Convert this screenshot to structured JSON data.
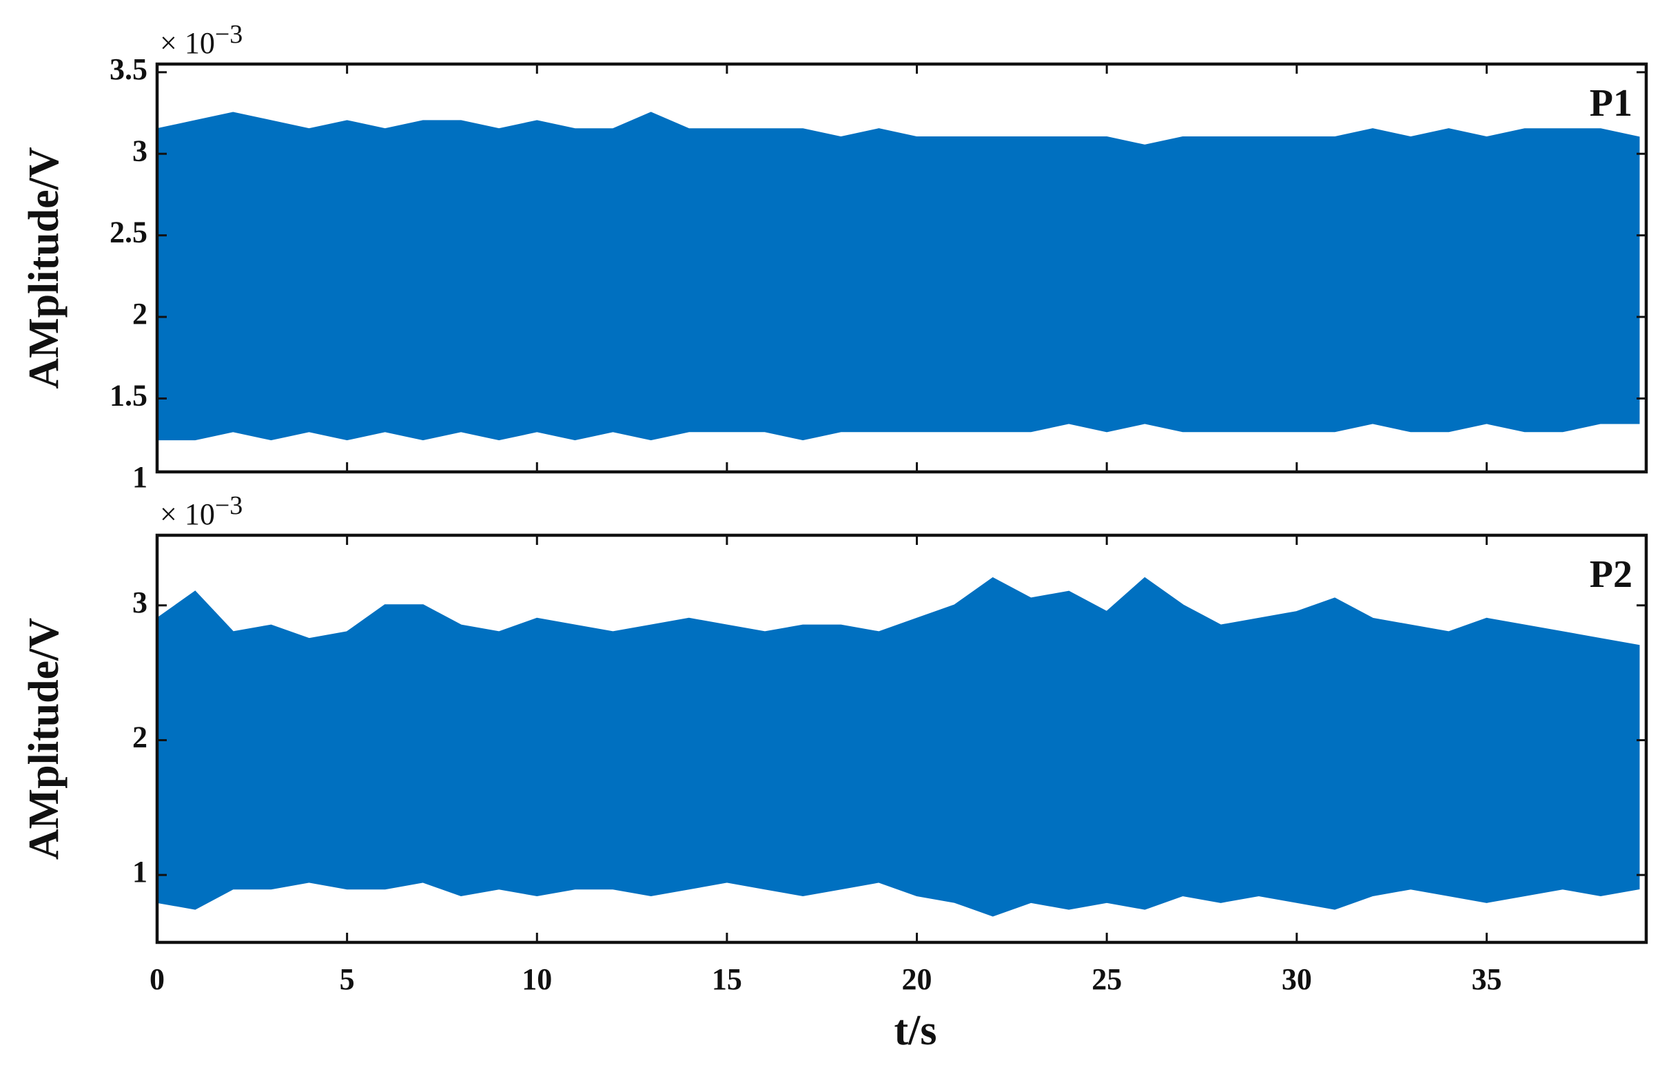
{
  "chart_data": [
    {
      "type": "range_area",
      "annotation": "P1",
      "ylabel": "AMplitude/V",
      "yexponent_base": "× 10",
      "yexponent": "−3",
      "color": "#0070c0",
      "xlim": [
        0,
        39.2
      ],
      "xticks": [
        0,
        5,
        10,
        15,
        20,
        25,
        30,
        35
      ],
      "show_xtick_labels": false,
      "ylim": [
        1.05,
        3.55
      ],
      "yticks": [
        1,
        1.5,
        2,
        2.5,
        3,
        3.5
      ],
      "x": [
        0,
        1,
        2,
        3,
        4,
        5,
        6,
        7,
        8,
        9,
        10,
        11,
        12,
        13,
        14,
        15,
        16,
        17,
        18,
        19,
        20,
        21,
        22,
        23,
        24,
        25,
        26,
        27,
        28,
        29,
        30,
        31,
        32,
        33,
        34,
        35,
        36,
        37,
        38,
        39
      ],
      "upper": [
        3.15,
        3.2,
        3.25,
        3.2,
        3.15,
        3.2,
        3.15,
        3.2,
        3.2,
        3.15,
        3.2,
        3.15,
        3.15,
        3.25,
        3.15,
        3.15,
        3.15,
        3.15,
        3.1,
        3.15,
        3.1,
        3.1,
        3.1,
        3.1,
        3.1,
        3.1,
        3.05,
        3.1,
        3.1,
        3.1,
        3.1,
        3.1,
        3.15,
        3.1,
        3.15,
        3.1,
        3.15,
        3.15,
        3.15,
        3.1
      ],
      "lower": [
        1.25,
        1.25,
        1.3,
        1.25,
        1.3,
        1.25,
        1.3,
        1.25,
        1.3,
        1.25,
        1.3,
        1.25,
        1.3,
        1.25,
        1.3,
        1.3,
        1.3,
        1.25,
        1.3,
        1.3,
        1.3,
        1.3,
        1.3,
        1.3,
        1.35,
        1.3,
        1.35,
        1.3,
        1.3,
        1.3,
        1.3,
        1.3,
        1.35,
        1.3,
        1.3,
        1.35,
        1.3,
        1.3,
        1.35,
        1.35
      ]
    },
    {
      "type": "range_area",
      "annotation": "P2",
      "ylabel": "AMplitude/V",
      "xlabel": "t/s",
      "yexponent_base": "× 10",
      "yexponent": "−3",
      "color": "#0070c0",
      "xlim": [
        0,
        39.2
      ],
      "xticks": [
        0,
        5,
        10,
        15,
        20,
        25,
        30,
        35
      ],
      "show_xtick_labels": true,
      "ylim": [
        0.5,
        3.52
      ],
      "yticks": [
        1,
        2,
        3
      ],
      "x": [
        0,
        1,
        2,
        3,
        4,
        5,
        6,
        7,
        8,
        9,
        10,
        11,
        12,
        13,
        14,
        15,
        16,
        17,
        18,
        19,
        20,
        21,
        22,
        23,
        24,
        25,
        26,
        27,
        28,
        29,
        30,
        31,
        32,
        33,
        34,
        35,
        36,
        37,
        38,
        39
      ],
      "upper": [
        2.9,
        3.1,
        2.8,
        2.85,
        2.75,
        2.8,
        3.0,
        3.0,
        2.85,
        2.8,
        2.9,
        2.85,
        2.8,
        2.85,
        2.9,
        2.85,
        2.8,
        2.85,
        2.85,
        2.8,
        2.9,
        3.0,
        3.2,
        3.05,
        3.1,
        2.95,
        3.2,
        3.0,
        2.85,
        2.9,
        2.95,
        3.05,
        2.9,
        2.85,
        2.8,
        2.9,
        2.85,
        2.8,
        2.75,
        2.7
      ],
      "lower": [
        0.8,
        0.75,
        0.9,
        0.9,
        0.95,
        0.9,
        0.9,
        0.95,
        0.85,
        0.9,
        0.85,
        0.9,
        0.9,
        0.85,
        0.9,
        0.95,
        0.9,
        0.85,
        0.9,
        0.95,
        0.85,
        0.8,
        0.7,
        0.8,
        0.75,
        0.8,
        0.75,
        0.85,
        0.8,
        0.85,
        0.8,
        0.75,
        0.85,
        0.9,
        0.85,
        0.8,
        0.85,
        0.9,
        0.85,
        0.9
      ]
    }
  ]
}
